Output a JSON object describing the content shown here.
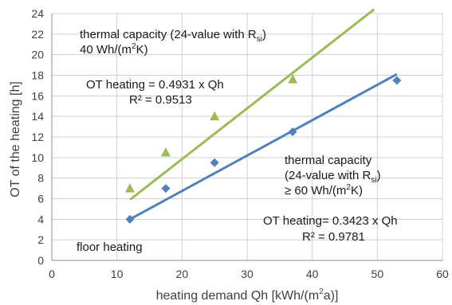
{
  "chart_data": {
    "type": "scatter",
    "xlabel_main": "heating demand Qh  [kWh/(m",
    "xlabel_sup": "2",
    "xlabel_tail": "a)]",
    "ylabel": "OT of the heating [h]",
    "xlim": [
      0,
      60
    ],
    "ylim": [
      0,
      24
    ],
    "x_ticks": [
      0,
      10,
      20,
      30,
      40,
      50,
      60
    ],
    "y_ticks": [
      0,
      2,
      4,
      6,
      8,
      10,
      12,
      14,
      16,
      18,
      20,
      22,
      24
    ],
    "grid": true,
    "series": [
      {
        "marker": "triangle",
        "color": "#9BBB59",
        "points": [
          {
            "x": 12,
            "y": 7.0
          },
          {
            "x": 17.5,
            "y": 10.5
          },
          {
            "x": 25,
            "y": 14.0
          },
          {
            "x": 37,
            "y": 17.6
          }
        ],
        "trendline": {
          "x": [
            12,
            49.5
          ],
          "y": [
            5.9,
            24.4
          ],
          "color": "#9BBB59"
        }
      },
      {
        "marker": "diamond",
        "color": "#4F81BD",
        "points": [
          {
            "x": 12,
            "y": 4.0
          },
          {
            "x": 17.5,
            "y": 7.0
          },
          {
            "x": 25,
            "y": 9.5
          },
          {
            "x": 37,
            "y": 12.5
          },
          {
            "x": 53,
            "y": 17.5
          }
        ],
        "trendline": {
          "x": [
            12,
            53
          ],
          "y": [
            4.0,
            18.1
          ],
          "color": "#4F81BD"
        }
      }
    ],
    "annotations": {
      "green_title_1": "thermal capacity (24-value with R",
      "green_title_1_sub": "si",
      "green_title_1_tail": ")",
      "green_title_2": "40 Wh/(m",
      "green_title_2_sup": "2",
      "green_title_2_tail": "K)",
      "green_eq": "OT heating  = 0.4931 x Qh",
      "green_r2": "R² = 0.9513",
      "blue_title_1": "thermal capacity",
      "blue_title_2": "(24-value with R",
      "blue_title_2_sub": "si",
      "blue_title_2_tail": ")",
      "blue_title_3": "≥ 60 Wh/(m",
      "blue_title_3_sup": "2",
      "blue_title_3_tail": "K)",
      "blue_eq": "OT heating= 0.3423 x Qh",
      "blue_r2": "R² = 0.9781",
      "floor": "floor heating"
    }
  }
}
